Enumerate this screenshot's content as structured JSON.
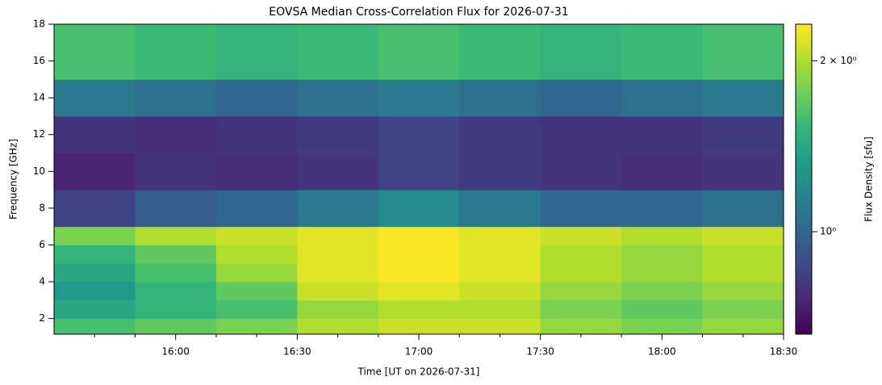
{
  "chart_data": {
    "type": "heatmap",
    "title": "EOVSA Median Cross-Correlation Flux for 2026-07-31",
    "xlabel": "Time [UT on 2026-07-31]",
    "ylabel": "Frequency [GHz]",
    "colorbar_label": "Flux Density [sfu]",
    "colormap": "viridis",
    "color_scale": "log",
    "xlim": [
      930,
      1110
    ],
    "xticks": [
      {
        "value": 960,
        "label": "16:00"
      },
      {
        "value": 990,
        "label": "16:30"
      },
      {
        "value": 1020,
        "label": "17:00"
      },
      {
        "value": 1050,
        "label": "17:30"
      },
      {
        "value": 1080,
        "label": "18:00"
      },
      {
        "value": 1110,
        "label": "18:30"
      }
    ],
    "xminorticks": [
      940,
      950,
      970,
      980,
      1000,
      1010,
      1030,
      1040,
      1060,
      1070,
      1090,
      1100
    ],
    "ylim": [
      1.15,
      18
    ],
    "yticks": [
      2,
      4,
      6,
      8,
      10,
      12,
      14,
      16,
      18
    ],
    "clim": [
      0.66,
      2.32
    ],
    "cticks": [
      {
        "value": 1,
        "label": "10⁰"
      },
      {
        "value": 2,
        "label": "2 × 10⁰"
      }
    ],
    "time_edges": [
      930,
      950,
      970,
      990,
      1010,
      1030,
      1050,
      1070,
      1090,
      1110
    ],
    "freq_edges": [
      1.15,
      2,
      3,
      4,
      5,
      6,
      7,
      9,
      11,
      13,
      15,
      18
    ],
    "z": [
      [
        1.6,
        1.7,
        1.8,
        2.0,
        2.1,
        2.1,
        1.9,
        1.8,
        1.9
      ],
      [
        1.4,
        1.5,
        1.6,
        1.9,
        2.0,
        2.0,
        1.8,
        1.7,
        1.8
      ],
      [
        1.3,
        1.5,
        1.7,
        2.1,
        2.2,
        2.1,
        1.9,
        1.8,
        1.9
      ],
      [
        1.4,
        1.6,
        1.9,
        2.2,
        2.3,
        2.2,
        2.0,
        1.9,
        2.0
      ],
      [
        1.5,
        1.7,
        2.0,
        2.2,
        2.3,
        2.2,
        2.0,
        1.9,
        2.0
      ],
      [
        1.8,
        2.0,
        2.1,
        2.2,
        2.3,
        2.2,
        2.1,
        2.0,
        2.1
      ],
      [
        0.85,
        0.95,
        1.0,
        1.1,
        1.2,
        1.1,
        1.0,
        1.0,
        1.05
      ],
      [
        0.75,
        0.8,
        0.78,
        0.8,
        0.85,
        0.82,
        0.8,
        0.78,
        0.8
      ],
      [
        0.8,
        0.78,
        0.8,
        0.82,
        0.85,
        0.82,
        0.8,
        0.8,
        0.82
      ],
      [
        1.1,
        1.05,
        1.0,
        1.05,
        1.1,
        1.05,
        1.0,
        1.05,
        1.1
      ],
      [
        1.6,
        1.55,
        1.5,
        1.55,
        1.6,
        1.55,
        1.5,
        1.55,
        1.6
      ]
    ]
  }
}
